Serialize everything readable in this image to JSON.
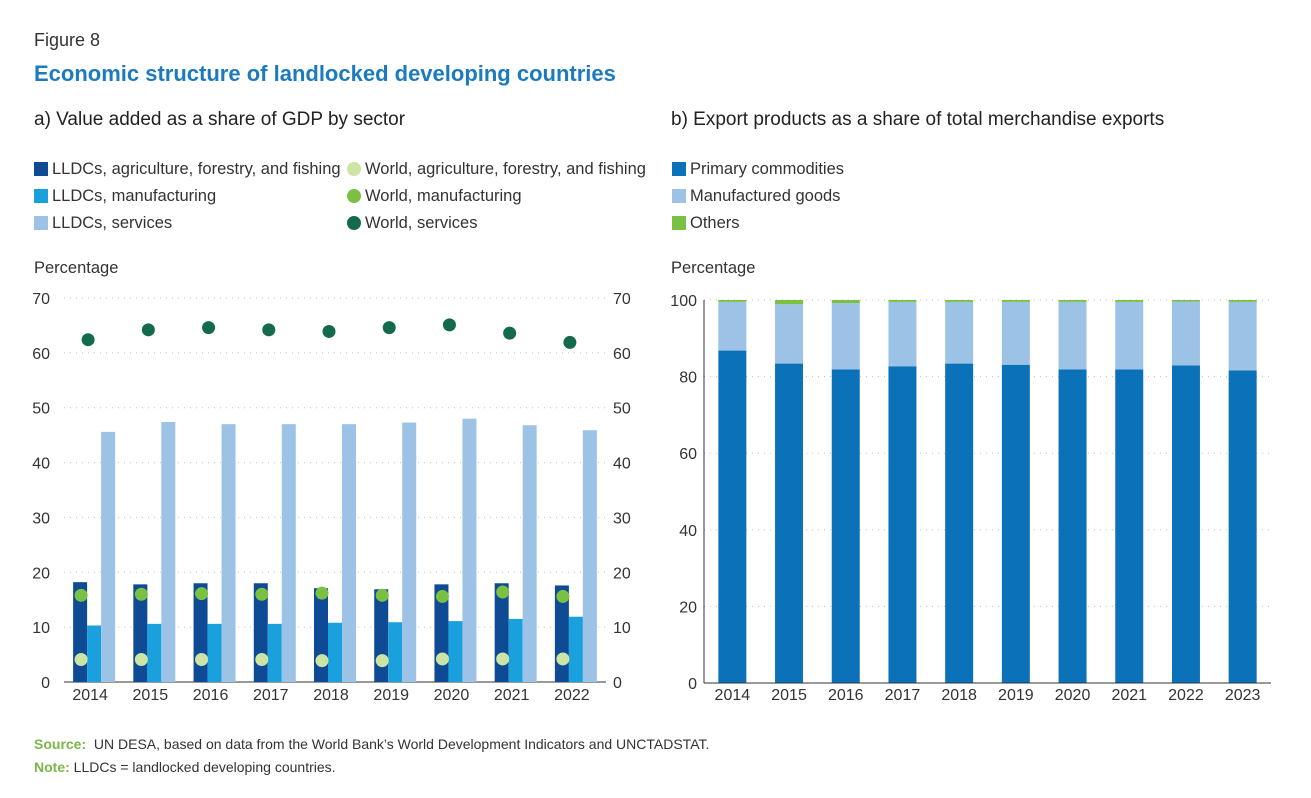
{
  "figure_label": "Figure 8",
  "figure_title": "Economic structure of landlocked developing countries",
  "colors": {
    "lldc_agri": "#0f4a95",
    "lldc_manu": "#1aa0dc",
    "lldc_serv": "#9cc3e6",
    "world_agri": "#cde5a4",
    "world_manu": "#7ac143",
    "world_serv": "#136b4c",
    "primary": "#0b72b9",
    "manufactured": "#9cc3e6",
    "others": "#7ac143",
    "title_blue": "#1c7bbf",
    "footer_green": "#7ab648"
  },
  "panel_a": {
    "title": "a)  Value added as a share of GDP by sector",
    "legend": [
      {
        "label": "LLDCs, agriculture, forestry, and fishing",
        "shape": "square",
        "color_key": "lldc_agri"
      },
      {
        "label": "LLDCs, manufacturing",
        "shape": "square",
        "color_key": "lldc_manu"
      },
      {
        "label": "LLDCs, services",
        "shape": "square",
        "color_key": "lldc_serv"
      },
      {
        "label": "World, agriculture, forestry, and fishing",
        "shape": "dot",
        "color_key": "world_agri"
      },
      {
        "label": "World, manufacturing",
        "shape": "dot",
        "color_key": "world_manu"
      },
      {
        "label": "World, services",
        "shape": "dot",
        "color_key": "world_serv"
      }
    ],
    "y_axis_label": "Percentage"
  },
  "panel_b": {
    "title": "b)  Export products as a share of total merchandise exports",
    "legend": [
      {
        "label": "Primary commodities",
        "shape": "square",
        "color_key": "primary"
      },
      {
        "label": "Manufactured goods",
        "shape": "square",
        "color_key": "manufactured"
      },
      {
        "label": "Others",
        "shape": "square",
        "color_key": "others"
      }
    ],
    "y_axis_label": "Percentage"
  },
  "chart_data": [
    {
      "type": "bar",
      "title": "a)  Value added as a share of GDP by sector",
      "ylabel": "Percentage",
      "ylim": [
        0,
        70
      ],
      "yticks": [
        0,
        10,
        20,
        30,
        40,
        50,
        60,
        70
      ],
      "secondary_y_ticks": true,
      "grid": "horizontal dotted",
      "legend_position": "top",
      "categories": [
        "2014",
        "2015",
        "2016",
        "2017",
        "2018",
        "2019",
        "2020",
        "2021",
        "2022"
      ],
      "series": [
        {
          "name": "LLDCs, agriculture, forestry, and fishing",
          "kind": "bar",
          "values": [
            18.2,
            17.8,
            18.0,
            18.0,
            17.1,
            16.9,
            17.8,
            18.0,
            17.6
          ]
        },
        {
          "name": "LLDCs, manufacturing",
          "kind": "bar",
          "values": [
            10.3,
            10.6,
            10.6,
            10.6,
            10.8,
            10.9,
            11.1,
            11.5,
            11.9
          ]
        },
        {
          "name": "LLDCs, services",
          "kind": "bar",
          "values": [
            45.6,
            47.4,
            47.0,
            47.0,
            47.0,
            47.3,
            48.0,
            46.8,
            45.9
          ]
        },
        {
          "name": "World, agriculture, forestry, and fishing",
          "kind": "dot",
          "values": [
            4.1,
            4.1,
            4.1,
            4.1,
            3.9,
            3.9,
            4.2,
            4.2,
            4.2
          ]
        },
        {
          "name": "World, manufacturing",
          "kind": "dot",
          "values": [
            15.8,
            16.0,
            16.1,
            16.0,
            16.2,
            15.8,
            15.6,
            16.4,
            15.6
          ]
        },
        {
          "name": "World, services",
          "kind": "dot",
          "values": [
            62.4,
            64.2,
            64.6,
            64.2,
            63.9,
            64.6,
            65.1,
            63.6,
            61.9
          ]
        }
      ]
    },
    {
      "type": "bar",
      "stacked": true,
      "title": "b)  Export products as a share of total merchandise exports",
      "ylabel": "Percentage",
      "ylim": [
        0,
        100
      ],
      "yticks": [
        0,
        20,
        40,
        60,
        80,
        100
      ],
      "grid": "horizontal dotted",
      "legend_position": "top",
      "categories": [
        "2014",
        "2015",
        "2016",
        "2017",
        "2018",
        "2019",
        "2020",
        "2021",
        "2022",
        "2023"
      ],
      "series": [
        {
          "name": "Primary commodities",
          "values": [
            86.8,
            83.4,
            81.9,
            82.7,
            83.4,
            83.1,
            81.9,
            81.9,
            82.9,
            81.6
          ]
        },
        {
          "name": "Manufactured goods",
          "values": [
            12.7,
            15.5,
            17.3,
            16.8,
            16.1,
            16.4,
            17.6,
            17.6,
            16.7,
            17.9
          ]
        },
        {
          "name": "Others",
          "values": [
            0.5,
            1.1,
            0.8,
            0.5,
            0.5,
            0.5,
            0.5,
            0.5,
            0.4,
            0.5
          ]
        }
      ]
    }
  ],
  "footer": {
    "source_label": "Source:",
    "source_text": "UN DESA, based on data from the World Bank’s World Development Indicators and UNCTADSTAT.",
    "note_label": "Note:",
    "note_text": "LLDCs = landlocked developing countries."
  }
}
